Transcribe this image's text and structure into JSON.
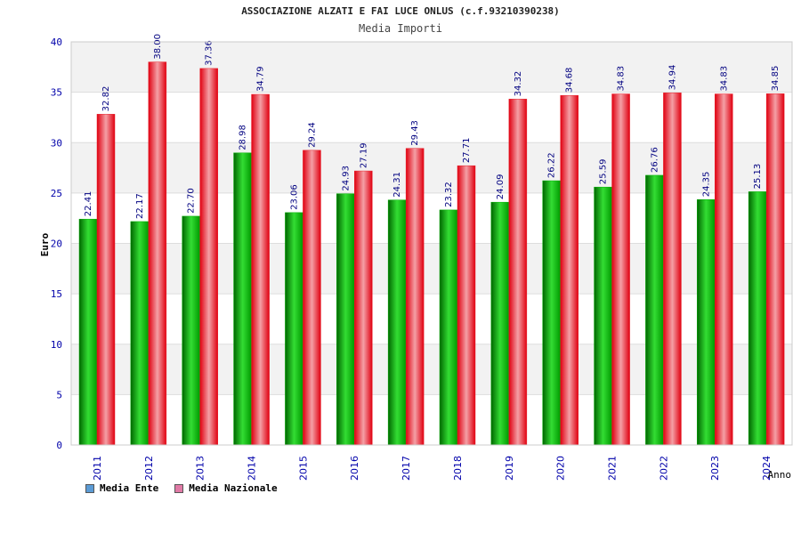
{
  "title": "ASSOCIAZIONE ALZATI E FAI LUCE ONLUS (c.f.93210390238)",
  "subtitle": "Media Importi",
  "legend": {
    "items": [
      {
        "label": "Media Ente",
        "color": "#5b9bd5"
      },
      {
        "label": "Media Nazionale",
        "color": "#e07aa6"
      }
    ]
  },
  "colors": {
    "ente_bar": "#00b000",
    "nazionale_bar": "#e8202a",
    "axis_text": "#0000aa",
    "value_label": "#000080",
    "band": "#f2f2f2"
  },
  "chart_data": {
    "type": "bar",
    "title": "ASSOCIAZIONE ALZATI E FAI LUCE ONLUS (c.f.93210390238)",
    "subtitle": "Media Importi",
    "xlabel": "Anno",
    "ylabel": "Euro",
    "ylim": [
      0,
      40
    ],
    "yticks": [
      0,
      5,
      10,
      15,
      20,
      25,
      30,
      35,
      40
    ],
    "grid": true,
    "legend_position": "bottom-left",
    "categories": [
      "2011",
      "2012",
      "2013",
      "2014",
      "2015",
      "2016",
      "2017",
      "2018",
      "2019",
      "2020",
      "2021",
      "2022",
      "2023",
      "2024"
    ],
    "series": [
      {
        "name": "Media Ente",
        "values": [
          22.41,
          22.17,
          22.7,
          28.98,
          23.06,
          24.93,
          24.31,
          23.32,
          24.09,
          26.22,
          25.59,
          26.76,
          24.35,
          25.13
        ],
        "labels": [
          "22.41",
          "22.17",
          "22.70",
          "28.98",
          "23.06",
          "24.93",
          "24.31",
          "23.32",
          "24.09",
          "26.22",
          "25.59",
          "26.76",
          "24.35",
          "25.13"
        ]
      },
      {
        "name": "Media Nazionale",
        "values": [
          32.82,
          38.0,
          37.36,
          34.79,
          29.24,
          27.19,
          29.43,
          27.71,
          34.32,
          34.68,
          34.83,
          34.94,
          34.83,
          34.85
        ],
        "labels": [
          "32.82",
          "38.00",
          "37.36",
          "34.79",
          "29.24",
          "27.19",
          "29.43",
          "27.71",
          "34.32",
          "34.68",
          "34.83",
          "34.94",
          "34.83",
          "34.85"
        ]
      }
    ]
  }
}
